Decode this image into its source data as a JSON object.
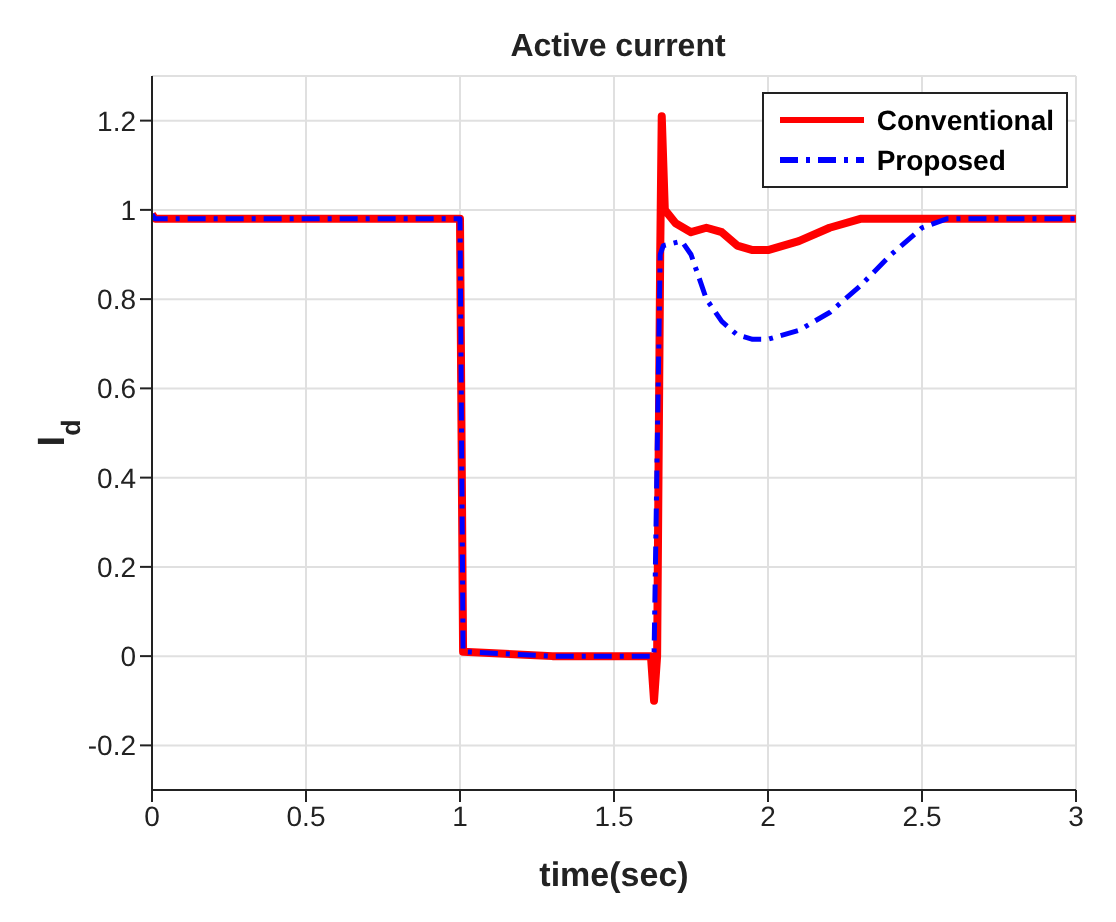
{
  "chart_data": {
    "type": "line",
    "title": "Active current",
    "xlabel": "time(sec)",
    "ylabel": "I$_{d}$",
    "xlim": [
      0,
      3
    ],
    "xticks": [
      0,
      0.5,
      1,
      1.5,
      2,
      2.5,
      3
    ],
    "ylim": [
      -0.3,
      1.3
    ],
    "yticks": [
      -0.2,
      0,
      0.2,
      0.4,
      0.6,
      0.8,
      1,
      1.2
    ],
    "grid": true,
    "legend": "top right",
    "marker": "none",
    "series": [
      {
        "name": "Conventional",
        "color": "#ff0000",
        "line_style": "solid",
        "x": [
          0,
          0.01,
          0.5,
          1,
          1.01,
          1.3,
          1.62,
          1.63,
          1.64,
          1.65,
          1.655,
          1.665,
          1.7,
          1.75,
          1.8,
          1.85,
          1.9,
          1.95,
          2,
          2.1,
          2.2,
          2.3,
          2.5,
          3
        ],
        "values": [
          0.99,
          0.98,
          0.98,
          0.98,
          0.01,
          0.0,
          0.0,
          -0.1,
          0.0,
          0.9,
          1.21,
          1.0,
          0.97,
          0.95,
          0.96,
          0.95,
          0.92,
          0.91,
          0.91,
          0.93,
          0.96,
          0.98,
          0.98,
          0.98
        ]
      },
      {
        "name": "Proposed",
        "color": "#0000ff",
        "line_style": "dashed",
        "x": [
          0,
          0.01,
          0.5,
          1,
          1.01,
          1.3,
          1.63,
          1.65,
          1.66,
          1.72,
          1.75,
          1.8,
          1.85,
          1.9,
          1.95,
          2,
          2.1,
          2.2,
          2.3,
          2.4,
          2.5,
          2.58,
          3
        ],
        "values": [
          0.99,
          0.98,
          0.98,
          0.98,
          0.01,
          0.0,
          0.0,
          0.9,
          0.92,
          0.93,
          0.9,
          0.8,
          0.75,
          0.72,
          0.71,
          0.71,
          0.73,
          0.77,
          0.83,
          0.9,
          0.96,
          0.98,
          0.98
        ]
      }
    ]
  }
}
